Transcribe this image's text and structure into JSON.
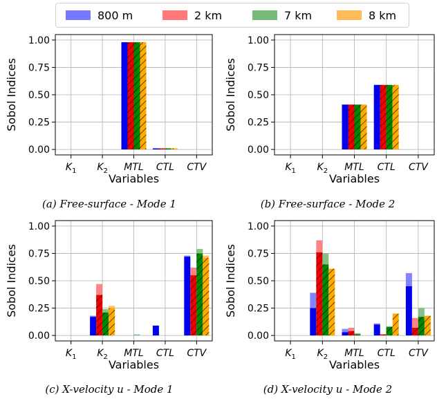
{
  "legend": [
    {
      "label": "800 m",
      "color": "#7777ff"
    },
    {
      "label": "2 km",
      "color": "#ff7777"
    },
    {
      "label": "7 km",
      "color": "#77bb77"
    },
    {
      "label": "8 km",
      "color": "#ffbb55"
    }
  ],
  "captions": [
    "(a) Free-surface - Mode 1",
    "(b) Free-surface - Mode 2",
    "(c) X-velocity u - Mode 1",
    "(d) X-velocity u - Mode 2"
  ],
  "chart_data": [
    {
      "type": "bar",
      "caption": "(a) Free-surface - Mode 1",
      "categories": [
        "K1",
        "K2",
        "MTL",
        "CTL",
        "CTV"
      ],
      "xlabel": "Variables",
      "ylabel": "Sobol Indices",
      "ylim": [
        -0.05,
        1.05
      ],
      "yticks": [
        "0.00",
        "0.25",
        "0.50",
        "0.75",
        "1.00"
      ],
      "grid": true,
      "series": [
        {
          "name": "800 m",
          "values": [
            0,
            0,
            0.98,
            0.01,
            0
          ],
          "upper": [
            0,
            0,
            0.98,
            0.01,
            0
          ]
        },
        {
          "name": "2 km",
          "values": [
            0,
            0,
            0.98,
            0.01,
            0
          ],
          "upper": [
            0,
            0,
            0.98,
            0.01,
            0
          ]
        },
        {
          "name": "7 km",
          "values": [
            0,
            0,
            0.98,
            0.01,
            0
          ],
          "upper": [
            0,
            0,
            0.98,
            0.01,
            0
          ]
        },
        {
          "name": "8 km",
          "values": [
            0,
            0,
            0.98,
            0.01,
            0
          ],
          "upper": [
            0,
            0,
            0.98,
            0.01,
            0
          ]
        }
      ]
    },
    {
      "type": "bar",
      "caption": "(b) Free-surface - Mode 2",
      "categories": [
        "K1",
        "K2",
        "MTL",
        "CTL",
        "CTV"
      ],
      "xlabel": "Variables",
      "ylabel": "Sobol Indices",
      "ylim": [
        -0.05,
        1.05
      ],
      "yticks": [
        "0.00",
        "0.25",
        "0.50",
        "0.75",
        "1.00"
      ],
      "grid": true,
      "series": [
        {
          "name": "800 m",
          "values": [
            0,
            0,
            0.41,
            0.59,
            0
          ],
          "upper": [
            0,
            0,
            0.41,
            0.59,
            0
          ]
        },
        {
          "name": "2 km",
          "values": [
            0,
            0,
            0.41,
            0.59,
            0
          ],
          "upper": [
            0,
            0,
            0.41,
            0.59,
            0
          ]
        },
        {
          "name": "7 km",
          "values": [
            0,
            0,
            0.41,
            0.59,
            0
          ],
          "upper": [
            0,
            0,
            0.41,
            0.59,
            0
          ]
        },
        {
          "name": "8 km",
          "values": [
            0,
            0,
            0.41,
            0.59,
            0
          ],
          "upper": [
            0,
            0,
            0.41,
            0.59,
            0
          ]
        }
      ]
    },
    {
      "type": "bar",
      "caption": "(c) X-velocity u - Mode 1",
      "categories": [
        "K1",
        "K2",
        "MTL",
        "CTL",
        "CTV"
      ],
      "xlabel": "Variables",
      "ylabel": "Sobol Indices",
      "ylim": [
        -0.05,
        1.05
      ],
      "yticks": [
        "0.00",
        "0.25",
        "0.50",
        "0.75",
        "1.00"
      ],
      "grid": true,
      "series": [
        {
          "name": "800 m",
          "values": [
            0,
            0.17,
            0,
            0.09,
            0.72
          ],
          "upper": [
            0,
            0.18,
            0,
            0.09,
            0.73
          ]
        },
        {
          "name": "2 km",
          "values": [
            0,
            0.37,
            0,
            0,
            0.55
          ],
          "upper": [
            0,
            0.47,
            0,
            0,
            0.62
          ]
        },
        {
          "name": "7 km",
          "values": [
            0,
            0.21,
            0,
            0,
            0.75
          ],
          "upper": [
            0,
            0.24,
            0.01,
            0,
            0.79
          ]
        },
        {
          "name": "8 km",
          "values": [
            0,
            0.25,
            0,
            0,
            0.71
          ],
          "upper": [
            0,
            0.27,
            0,
            0,
            0.73
          ]
        }
      ]
    },
    {
      "type": "bar",
      "caption": "(d) X-velocity u - Mode 2",
      "categories": [
        "K1",
        "K2",
        "MTL",
        "CTL",
        "CTV"
      ],
      "xlabel": "Variables",
      "ylabel": "Sobol Indices",
      "ylim": [
        -0.05,
        1.05
      ],
      "yticks": [
        "0.00",
        "0.25",
        "0.50",
        "0.75",
        "1.00"
      ],
      "grid": true,
      "series": [
        {
          "name": "800 m",
          "values": [
            0,
            0.25,
            0.03,
            0.1,
            0.45
          ],
          "upper": [
            0,
            0.39,
            0.06,
            0.11,
            0.57
          ]
        },
        {
          "name": "2 km",
          "values": [
            0,
            0.76,
            0.04,
            0.01,
            0.07
          ],
          "upper": [
            0,
            0.87,
            0.07,
            0.01,
            0.16
          ]
        },
        {
          "name": "7 km",
          "values": [
            0,
            0.65,
            0.01,
            0.08,
            0.17
          ],
          "upper": [
            0,
            0.75,
            0.02,
            0.08,
            0.25
          ]
        },
        {
          "name": "8 km",
          "values": [
            0,
            0.61,
            0,
            0.2,
            0.18
          ],
          "upper": [
            0,
            0.61,
            0,
            0.2,
            0.18
          ]
        }
      ]
    }
  ]
}
